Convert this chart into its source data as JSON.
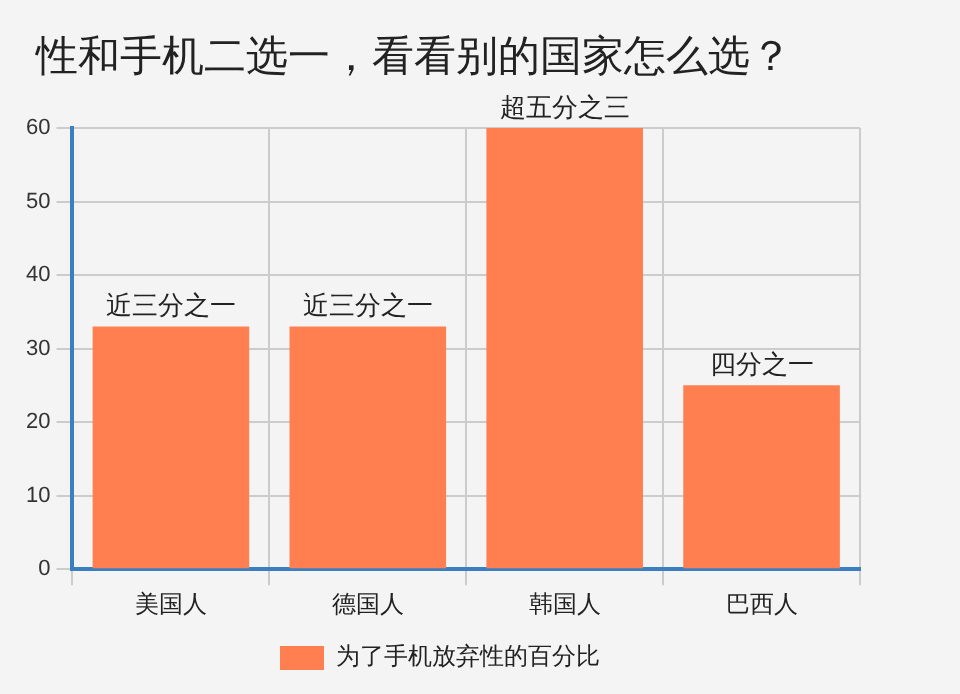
{
  "chart_data": {
    "type": "bar",
    "title": "性和手机二选一，看看别的国家怎么选？",
    "categories": [
      "美国人",
      "德国人",
      "韩国人",
      "巴西人"
    ],
    "series": [
      {
        "name": "为了手机放弃性的百分比",
        "color": "#ff7f50",
        "values": [
          33,
          33,
          60,
          25
        ],
        "value_labels": [
          "近三分之一",
          "近三分之一",
          "超五分之三",
          "四分之一"
        ]
      }
    ],
    "ylim": [
      0,
      60
    ],
    "yticks": [
      0,
      10,
      20,
      30,
      40,
      50,
      60
    ],
    "grid": true,
    "legend": "bottom"
  }
}
